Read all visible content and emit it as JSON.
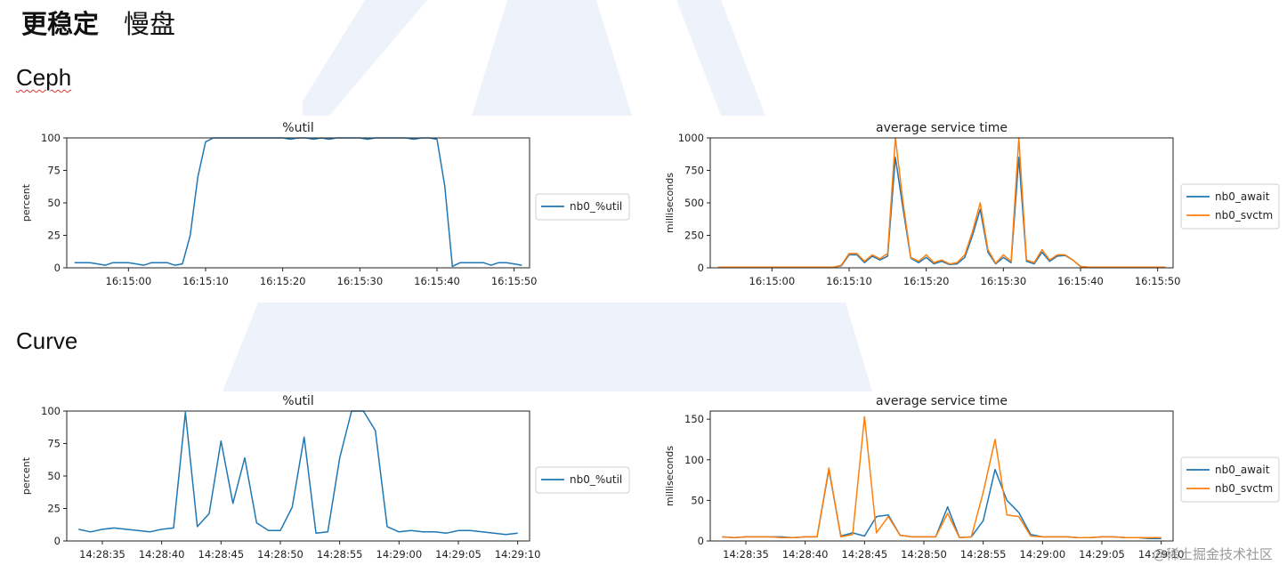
{
  "page": {
    "heading_bold": "更稳定",
    "heading_normal": "慢盘",
    "sections": [
      "Ceph",
      "Curve"
    ],
    "watermark": "@稀土掘金技术社区"
  },
  "colors": {
    "blue": "#1f77b4",
    "orange": "#ff7f0e",
    "background_shape": "#eef2fa"
  },
  "chart_data": [
    {
      "id": "ceph-util",
      "type": "line",
      "title": "%util",
      "ylabel": "percent",
      "xlabel": "",
      "ylim": [
        0,
        100
      ],
      "yticks": [
        0,
        25,
        50,
        75,
        100
      ],
      "xlim": [
        "16:14:52",
        "16:15:52"
      ],
      "xticks": [
        "16:15:00",
        "16:15:10",
        "16:15:20",
        "16:15:30",
        "16:15:40",
        "16:15:50"
      ],
      "legend": "outside-right",
      "grid": false,
      "x": [
        "16:14:53",
        "16:14:54",
        "16:14:55",
        "16:14:56",
        "16:14:57",
        "16:14:58",
        "16:14:59",
        "16:15:00",
        "16:15:01",
        "16:15:02",
        "16:15:03",
        "16:15:04",
        "16:15:05",
        "16:15:06",
        "16:15:07",
        "16:15:08",
        "16:15:09",
        "16:15:10",
        "16:15:11",
        "16:15:12",
        "16:15:13",
        "16:15:14",
        "16:15:15",
        "16:15:16",
        "16:15:17",
        "16:15:18",
        "16:15:19",
        "16:15:20",
        "16:15:21",
        "16:15:22",
        "16:15:23",
        "16:15:24",
        "16:15:25",
        "16:15:26",
        "16:15:27",
        "16:15:28",
        "16:15:29",
        "16:15:30",
        "16:15:31",
        "16:15:32",
        "16:15:33",
        "16:15:34",
        "16:15:35",
        "16:15:36",
        "16:15:37",
        "16:15:38",
        "16:15:39",
        "16:15:40",
        "16:15:41",
        "16:15:42",
        "16:15:43",
        "16:15:44",
        "16:15:45",
        "16:15:46",
        "16:15:47",
        "16:15:48",
        "16:15:49",
        "16:15:50",
        "16:15:51"
      ],
      "series": [
        {
          "name": "nb0_%util",
          "color": "#1f77b4",
          "values": [
            4,
            4,
            4,
            3,
            2,
            4,
            4,
            4,
            3,
            2,
            4,
            4,
            4,
            2,
            3,
            25,
            70,
            97,
            100,
            100,
            100,
            100,
            100,
            100,
            100,
            100,
            100,
            100,
            99,
            100,
            100,
            99,
            100,
            99,
            100,
            100,
            100,
            100,
            99,
            100,
            100,
            100,
            100,
            100,
            99,
            100,
            100,
            99,
            63,
            1,
            4,
            4,
            4,
            4,
            2,
            4,
            4,
            3,
            2
          ]
        }
      ]
    },
    {
      "id": "ceph-svctime",
      "type": "line",
      "title": "average service time",
      "ylabel": "milliseconds",
      "xlabel": "",
      "ylim": [
        0,
        1000
      ],
      "yticks": [
        0,
        250,
        500,
        750,
        1000
      ],
      "xlim": [
        "16:14:52",
        "16:15:52"
      ],
      "xticks": [
        "16:15:00",
        "16:15:10",
        "16:15:20",
        "16:15:30",
        "16:15:40",
        "16:15:50"
      ],
      "legend": "outside-right",
      "grid": false,
      "x": [
        "16:14:53",
        "16:14:54",
        "16:14:55",
        "16:14:56",
        "16:14:57",
        "16:14:58",
        "16:14:59",
        "16:15:00",
        "16:15:01",
        "16:15:02",
        "16:15:03",
        "16:15:04",
        "16:15:05",
        "16:15:06",
        "16:15:07",
        "16:15:08",
        "16:15:09",
        "16:15:10",
        "16:15:11",
        "16:15:12",
        "16:15:13",
        "16:15:14",
        "16:15:15",
        "16:15:16",
        "16:15:17",
        "16:15:18",
        "16:15:19",
        "16:15:20",
        "16:15:21",
        "16:15:22",
        "16:15:23",
        "16:15:24",
        "16:15:25",
        "16:15:26",
        "16:15:27",
        "16:15:28",
        "16:15:29",
        "16:15:30",
        "16:15:31",
        "16:15:32",
        "16:15:33",
        "16:15:34",
        "16:15:35",
        "16:15:36",
        "16:15:37",
        "16:15:38",
        "16:15:39",
        "16:15:40",
        "16:15:41",
        "16:15:42",
        "16:15:43",
        "16:15:44",
        "16:15:45",
        "16:15:46",
        "16:15:47",
        "16:15:48",
        "16:15:49",
        "16:15:50",
        "16:15:51"
      ],
      "series": [
        {
          "name": "nb0_await",
          "color": "#1f77b4",
          "values": [
            5,
            5,
            5,
            5,
            5,
            5,
            5,
            5,
            5,
            5,
            5,
            5,
            5,
            5,
            5,
            5,
            15,
            100,
            100,
            40,
            90,
            60,
            90,
            850,
            450,
            75,
            40,
            80,
            30,
            50,
            25,
            30,
            80,
            250,
            450,
            120,
            30,
            80,
            40,
            850,
            50,
            30,
            120,
            50,
            90,
            95,
            60,
            10,
            5,
            5,
            5,
            5,
            5,
            5,
            5,
            5,
            5,
            5,
            5
          ]
        },
        {
          "name": "nb0_svctm",
          "color": "#ff7f0e",
          "values": [
            5,
            5,
            5,
            5,
            5,
            5,
            5,
            5,
            5,
            5,
            5,
            5,
            5,
            5,
            5,
            5,
            20,
            110,
            110,
            50,
            100,
            70,
            110,
            1000,
            500,
            80,
            50,
            100,
            40,
            60,
            30,
            40,
            100,
            280,
            500,
            140,
            35,
            100,
            50,
            1000,
            60,
            40,
            140,
            60,
            100,
            100,
            60,
            10,
            5,
            5,
            5,
            5,
            5,
            5,
            5,
            5,
            5,
            5,
            5
          ]
        }
      ]
    },
    {
      "id": "curve-util",
      "type": "line",
      "title": "%util",
      "ylabel": "percent",
      "xlabel": "",
      "ylim": [
        0,
        100
      ],
      "yticks": [
        0,
        25,
        50,
        75,
        100
      ],
      "xlim": [
        "14:28:32",
        "14:29:11"
      ],
      "xticks": [
        "14:28:35",
        "14:28:40",
        "14:28:45",
        "14:28:50",
        "14:28:55",
        "14:29:00",
        "14:29:05",
        "14:29:10"
      ],
      "legend": "outside-right",
      "grid": false,
      "x": [
        "14:28:33",
        "14:28:34",
        "14:28:35",
        "14:28:36",
        "14:28:37",
        "14:28:38",
        "14:28:39",
        "14:28:40",
        "14:28:41",
        "14:28:42",
        "14:28:43",
        "14:28:44",
        "14:28:45",
        "14:28:46",
        "14:28:47",
        "14:28:48",
        "14:28:49",
        "14:28:50",
        "14:28:51",
        "14:28:52",
        "14:28:53",
        "14:28:54",
        "14:28:55",
        "14:28:56",
        "14:28:57",
        "14:28:58",
        "14:28:59",
        "14:29:00",
        "14:29:01",
        "14:29:02",
        "14:29:03",
        "14:29:04",
        "14:29:05",
        "14:29:06",
        "14:29:07",
        "14:29:08",
        "14:29:09",
        "14:29:10"
      ],
      "series": [
        {
          "name": "nb0_%util",
          "color": "#1f77b4",
          "values": [
            9,
            7,
            9,
            10,
            9,
            8,
            7,
            9,
            10,
            99,
            11,
            21,
            77,
            29,
            64,
            14,
            8,
            8,
            26,
            80,
            6,
            7,
            64,
            100,
            100,
            85,
            11,
            7,
            8,
            7,
            7,
            6,
            8,
            8,
            7,
            6,
            5,
            6
          ]
        }
      ]
    },
    {
      "id": "curve-svctime",
      "type": "line",
      "title": "average service time",
      "ylabel": "milliseconds",
      "xlabel": "",
      "ylim": [
        0,
        160
      ],
      "yticks": [
        0,
        50,
        100,
        150
      ],
      "xlim": [
        "14:28:32",
        "14:29:11"
      ],
      "xticks": [
        "14:28:35",
        "14:28:40",
        "14:28:45",
        "14:28:50",
        "14:28:55",
        "14:29:00",
        "14:29:05",
        "14:29:10"
      ],
      "legend": "outside-right",
      "grid": false,
      "x": [
        "14:28:33",
        "14:28:34",
        "14:28:35",
        "14:28:36",
        "14:28:37",
        "14:28:38",
        "14:28:39",
        "14:28:40",
        "14:28:41",
        "14:28:42",
        "14:28:43",
        "14:28:44",
        "14:28:45",
        "14:28:46",
        "14:28:47",
        "14:28:48",
        "14:28:49",
        "14:28:50",
        "14:28:51",
        "14:28:52",
        "14:28:53",
        "14:28:54",
        "14:28:55",
        "14:28:56",
        "14:28:57",
        "14:28:58",
        "14:28:59",
        "14:29:00",
        "14:29:01",
        "14:29:02",
        "14:29:03",
        "14:29:04",
        "14:29:05",
        "14:29:06",
        "14:29:07",
        "14:29:08",
        "14:29:09",
        "14:29:10"
      ],
      "series": [
        {
          "name": "nb0_await",
          "color": "#1f77b4",
          "values": [
            5,
            4,
            5,
            5,
            5,
            5,
            4,
            5,
            5,
            88,
            6,
            10,
            6,
            30,
            32,
            7,
            5,
            5,
            5,
            42,
            4,
            5,
            25,
            88,
            50,
            35,
            8,
            5,
            5,
            5,
            4,
            4,
            5,
            5,
            4,
            4,
            3,
            3
          ]
        },
        {
          "name": "nb0_svctm",
          "color": "#ff7f0e",
          "values": [
            5,
            4,
            5,
            5,
            5,
            4,
            4,
            5,
            5,
            90,
            5,
            8,
            153,
            10,
            30,
            7,
            5,
            5,
            5,
            34,
            4,
            5,
            60,
            125,
            32,
            30,
            6,
            5,
            5,
            5,
            4,
            4,
            5,
            5,
            4,
            4,
            4,
            4
          ]
        }
      ]
    }
  ]
}
